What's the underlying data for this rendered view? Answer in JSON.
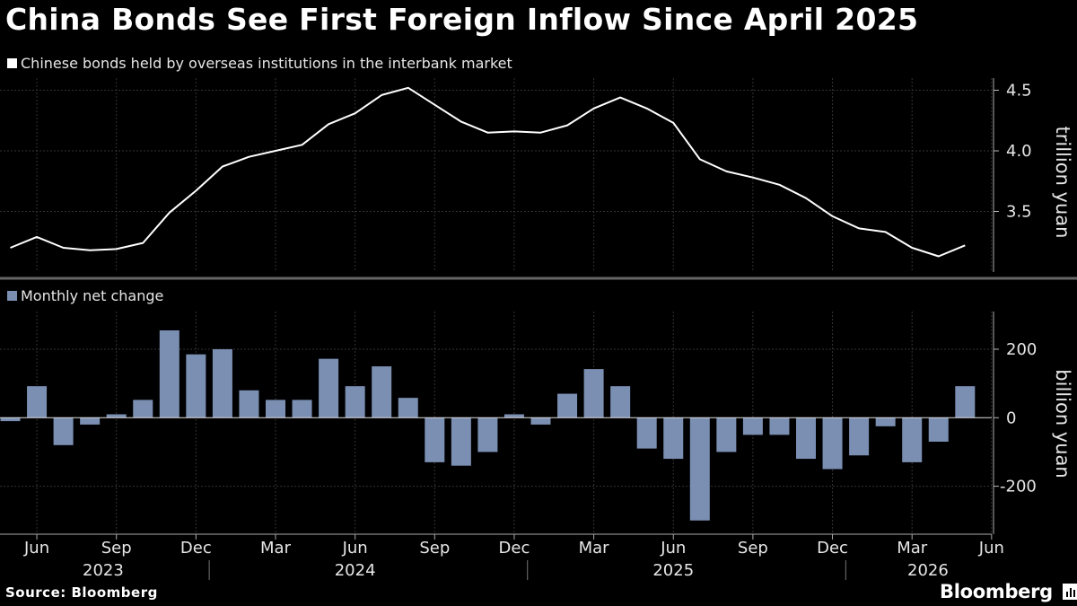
{
  "title": "China Bonds See First Foreign Inflow Since April 2025",
  "source": "Source: Bloomberg",
  "brand": "Bloomberg",
  "colors": {
    "background": "#000000",
    "line": "#ffffff",
    "bar": "#7b8fb3",
    "grid": "#333333"
  },
  "chart_data": [
    {
      "type": "line",
      "legend": "Chinese bonds held by overseas institutions in the interbank market",
      "ylabel": "trillion yuan",
      "ylim": [
        3.0,
        4.6
      ],
      "yticks": [
        3.5,
        4.0,
        4.5
      ],
      "ytick_labels": [
        "3.5",
        "4.0",
        "4.5"
      ],
      "legend_position": "top-left",
      "grid": true,
      "x": [
        "2023-05",
        "2023-06",
        "2023-07",
        "2023-08",
        "2023-09",
        "2023-10",
        "2023-11",
        "2023-12",
        "2024-01",
        "2024-02",
        "2024-03",
        "2024-04",
        "2024-05",
        "2024-06",
        "2024-07",
        "2024-08",
        "2024-09",
        "2024-10",
        "2024-11",
        "2024-12",
        "2025-01",
        "2025-02",
        "2025-03",
        "2025-04",
        "2025-05",
        "2025-06",
        "2025-07",
        "2025-08",
        "2025-09",
        "2025-10",
        "2025-11",
        "2025-12",
        "2026-01",
        "2026-02",
        "2026-03",
        "2026-04",
        "2026-05"
      ],
      "values": [
        3.2,
        3.29,
        3.2,
        3.18,
        3.19,
        3.24,
        3.49,
        3.67,
        3.87,
        3.95,
        4.0,
        4.05,
        4.22,
        4.31,
        4.46,
        4.52,
        4.38,
        4.24,
        4.15,
        4.16,
        4.15,
        4.21,
        4.35,
        4.44,
        4.35,
        4.23,
        3.93,
        3.83,
        3.78,
        3.72,
        3.61,
        3.46,
        3.36,
        3.33,
        3.2,
        3.13,
        3.22
      ]
    },
    {
      "type": "bar",
      "legend": "Monthly net change",
      "ylabel": "billion yuan",
      "ylim": [
        -340,
        310
      ],
      "yticks": [
        -200,
        0,
        200
      ],
      "ytick_labels": [
        "-200",
        "0",
        "200"
      ],
      "legend_position": "top-left",
      "grid": true,
      "x": [
        "2023-05",
        "2023-06",
        "2023-07",
        "2023-08",
        "2023-09",
        "2023-10",
        "2023-11",
        "2023-12",
        "2024-01",
        "2024-02",
        "2024-03",
        "2024-04",
        "2024-05",
        "2024-06",
        "2024-07",
        "2024-08",
        "2024-09",
        "2024-10",
        "2024-11",
        "2024-12",
        "2025-01",
        "2025-02",
        "2025-03",
        "2025-04",
        "2025-05",
        "2025-06",
        "2025-07",
        "2025-08",
        "2025-09",
        "2025-10",
        "2025-11",
        "2025-12",
        "2026-01",
        "2026-02",
        "2026-03",
        "2026-04",
        "2026-05"
      ],
      "values": [
        -10,
        92,
        -80,
        -20,
        10,
        52,
        255,
        185,
        200,
        80,
        52,
        52,
        172,
        92,
        150,
        58,
        -130,
        -140,
        -100,
        10,
        -20,
        70,
        142,
        92,
        -90,
        -120,
        -300,
        -100,
        -50,
        -50,
        -120,
        -150,
        -110,
        -25,
        -130,
        -70,
        92
      ]
    }
  ],
  "xaxis": {
    "tick_labels": [
      "Jun",
      "Sep",
      "Dec",
      "Mar",
      "Jun",
      "Sep",
      "Dec",
      "Mar",
      "Jun",
      "Sep",
      "Dec",
      "Mar",
      "Jun"
    ],
    "tick_months": [
      1,
      4,
      7,
      10,
      13,
      16,
      19,
      22,
      25,
      28,
      31,
      34,
      37
    ],
    "years": [
      "2023",
      "2024",
      "2025",
      "2026"
    ],
    "year_center_months": [
      3.5,
      13,
      25,
      34.6
    ],
    "year_separator_months": [
      7.5,
      19.5,
      31.5
    ]
  }
}
